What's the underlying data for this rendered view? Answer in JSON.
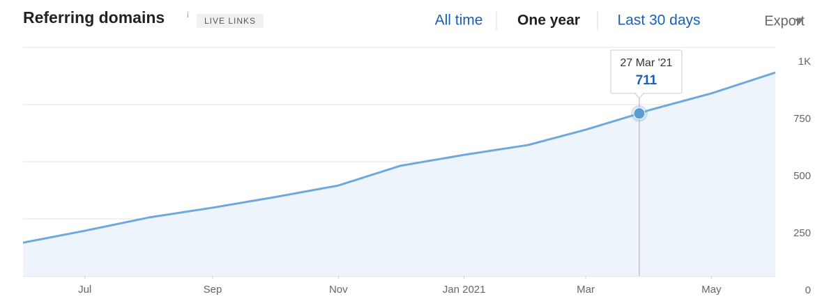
{
  "chart_data": {
    "type": "area",
    "title": "Referring domains",
    "info": "i",
    "badge": "LIVE LINKS",
    "tabs": [
      "All time",
      "One year",
      "Last 30 days"
    ],
    "active_tab": 1,
    "export": "Export",
    "color": "#6fa8dc",
    "fill": "#eef4fb",
    "x": [
      "2020-06",
      "2020-07",
      "2020-08",
      "2020-09",
      "2020-10",
      "2020-11",
      "2020-12",
      "2021-01",
      "2021-02",
      "2021-03",
      "2021-03-27",
      "2021-04",
      "2021-05",
      "2021-06"
    ],
    "values": [
      146,
      198,
      256,
      299,
      345,
      396,
      482,
      530,
      573,
      640,
      711,
      726,
      799,
      890
    ],
    "xlim": [
      "2020-06",
      "2021-06"
    ],
    "xticks": [
      {
        "value": "2020-07",
        "label": "Jul"
      },
      {
        "value": "2020-09",
        "label": "Sep"
      },
      {
        "value": "2020-11",
        "label": "Nov"
      },
      {
        "value": "2021-01",
        "label": "Jan 2021"
      },
      {
        "value": "2021-03",
        "label": "Mar"
      },
      {
        "value": "2021-05",
        "label": "May"
      }
    ],
    "ylim": [
      0,
      1000
    ],
    "yticks": [
      0,
      250,
      500,
      750,
      {
        "value": 1000,
        "label": "1K"
      }
    ],
    "grid": true,
    "tooltip": {
      "index": 10,
      "label": "27 Mar '21"
    }
  }
}
